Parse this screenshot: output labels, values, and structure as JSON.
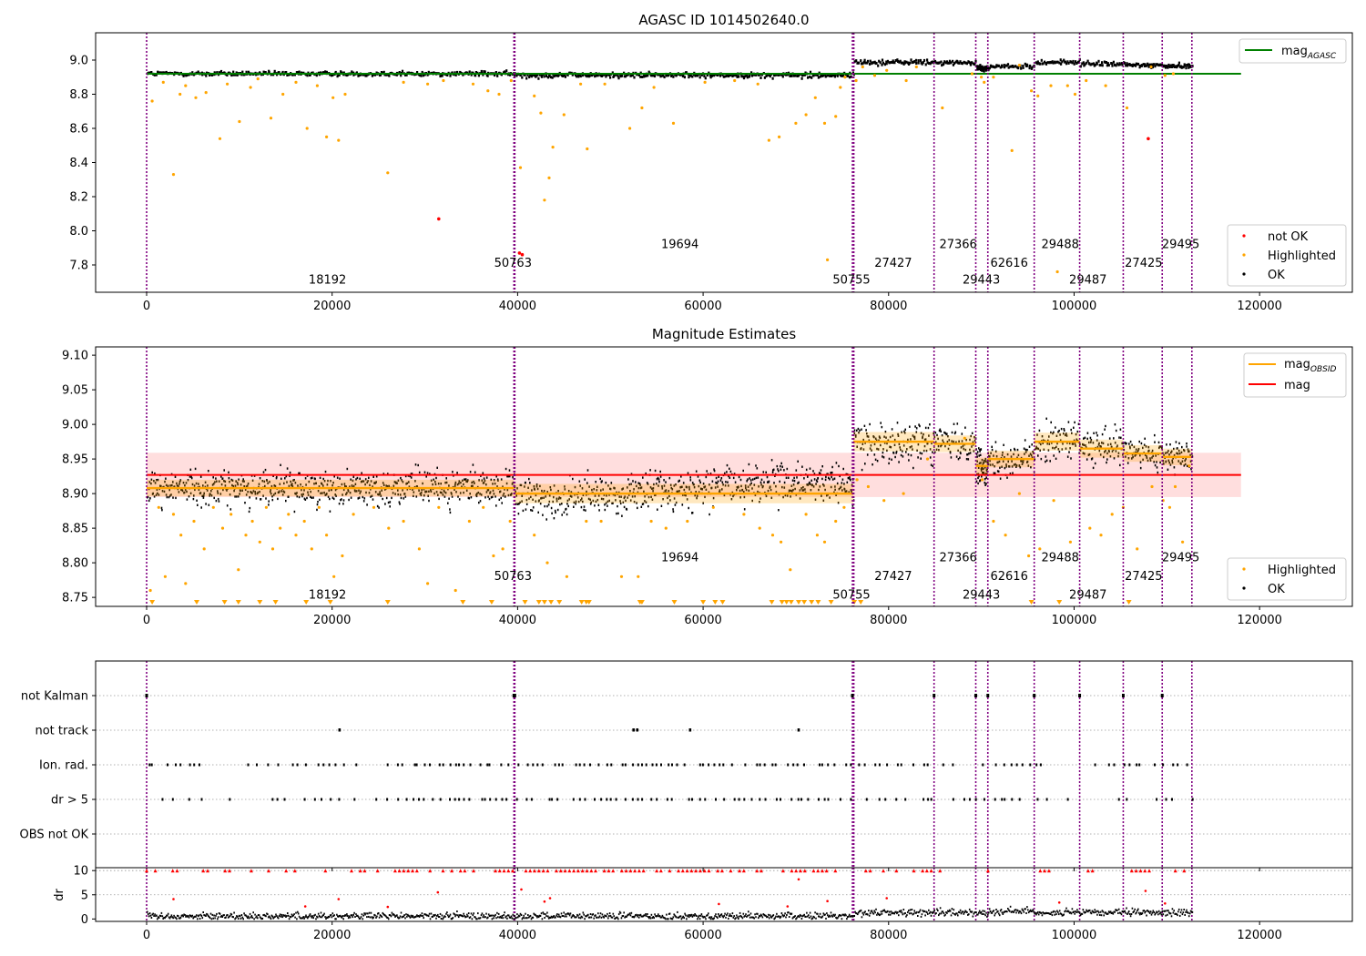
{
  "chart_data": [
    {
      "type": "scatter",
      "title": "AGASC ID 1014502640.0",
      "xlim": [
        -5500,
        130000
      ],
      "ylim": [
        7.64,
        9.16
      ],
      "xticks": [
        0,
        20000,
        40000,
        60000,
        80000,
        100000,
        120000
      ],
      "yticks": [
        7.8,
        8.0,
        8.2,
        8.4,
        8.6,
        8.8,
        9.0
      ],
      "mag_agasc": 8.92,
      "mag_agasc_xrange": [
        0,
        118000
      ],
      "segments": [
        {
          "start": 0,
          "end": 39600,
          "mean": 8.908,
          "spread": 0.012
        },
        {
          "start": 39600,
          "end": 76200,
          "mean": 8.9,
          "spread": 0.014
        },
        {
          "start": 76200,
          "end": 84900,
          "mean": 8.975,
          "spread": 0.014
        },
        {
          "start": 84900,
          "end": 89400,
          "mean": 8.972,
          "spread": 0.012
        },
        {
          "start": 89400,
          "end": 90700,
          "mean": 8.94,
          "spread": 0.012
        },
        {
          "start": 90700,
          "end": 95700,
          "mean": 8.95,
          "spread": 0.012
        },
        {
          "start": 95700,
          "end": 100600,
          "mean": 8.975,
          "spread": 0.013
        },
        {
          "start": 100600,
          "end": 105300,
          "mean": 8.965,
          "spread": 0.013
        },
        {
          "start": 105300,
          "end": 109500,
          "mean": 8.958,
          "spread": 0.012
        },
        {
          "start": 109500,
          "end": 112700,
          "mean": 8.953,
          "spread": 0.012
        }
      ],
      "vlines": [
        0,
        39600,
        39700,
        76100,
        76250,
        84900,
        89400,
        90700,
        95700,
        100600,
        105300,
        109500,
        112700
      ],
      "obsid_labels": [
        {
          "text": "18192",
          "x": 19500,
          "y": 7.69
        },
        {
          "text": "50763",
          "x": 39500,
          "y": 7.79
        },
        {
          "text": "19694",
          "x": 57500,
          "y": 7.9
        },
        {
          "text": "50755",
          "x": 76000,
          "y": 7.69
        },
        {
          "text": "27427",
          "x": 80500,
          "y": 7.79
        },
        {
          "text": "27366",
          "x": 87500,
          "y": 7.9
        },
        {
          "text": "29443",
          "x": 90000,
          "y": 7.69
        },
        {
          "text": "62616",
          "x": 93000,
          "y": 7.79
        },
        {
          "text": "29488",
          "x": 98500,
          "y": 7.9
        },
        {
          "text": "29487",
          "x": 101500,
          "y": 7.69
        },
        {
          "text": "27425",
          "x": 107500,
          "y": 7.79
        },
        {
          "text": "29495",
          "x": 111500,
          "y": 7.9
        }
      ],
      "highlighted_points": [
        [
          600,
          8.76
        ],
        [
          1800,
          8.87
        ],
        [
          2900,
          8.33
        ],
        [
          3600,
          8.8
        ],
        [
          4200,
          8.85
        ],
        [
          5300,
          8.78
        ],
        [
          6400,
          8.81
        ],
        [
          7900,
          8.54
        ],
        [
          8700,
          8.86
        ],
        [
          10000,
          8.64
        ],
        [
          11200,
          8.84
        ],
        [
          12000,
          8.89
        ],
        [
          13400,
          8.66
        ],
        [
          14700,
          8.8
        ],
        [
          16100,
          8.87
        ],
        [
          17300,
          8.6
        ],
        [
          18400,
          8.85
        ],
        [
          19400,
          8.55
        ],
        [
          20100,
          8.78
        ],
        [
          20700,
          8.53
        ],
        [
          21400,
          8.8
        ],
        [
          26000,
          8.34
        ],
        [
          27700,
          8.87
        ],
        [
          30300,
          8.86
        ],
        [
          32000,
          8.88
        ],
        [
          35200,
          8.86
        ],
        [
          36800,
          8.82
        ],
        [
          38000,
          8.8
        ],
        [
          39300,
          8.88
        ],
        [
          40300,
          8.37
        ],
        [
          41800,
          8.79
        ],
        [
          42500,
          8.69
        ],
        [
          42900,
          8.18
        ],
        [
          43400,
          8.31
        ],
        [
          43800,
          8.49
        ],
        [
          45000,
          8.68
        ],
        [
          46800,
          8.86
        ],
        [
          47500,
          8.48
        ],
        [
          49400,
          8.86
        ],
        [
          52100,
          8.6
        ],
        [
          53400,
          8.72
        ],
        [
          54700,
          8.84
        ],
        [
          56800,
          8.63
        ],
        [
          60200,
          8.87
        ],
        [
          63400,
          8.88
        ],
        [
          65900,
          8.86
        ],
        [
          67100,
          8.53
        ],
        [
          68200,
          8.55
        ],
        [
          70000,
          8.63
        ],
        [
          71100,
          8.68
        ],
        [
          72100,
          8.78
        ],
        [
          73100,
          8.63
        ],
        [
          74300,
          8.67
        ],
        [
          74800,
          8.84
        ],
        [
          75300,
          8.9
        ],
        [
          73400,
          7.83
        ],
        [
          76500,
          8.88
        ],
        [
          77200,
          8.96
        ],
        [
          78500,
          8.91
        ],
        [
          79800,
          8.94
        ],
        [
          81900,
          8.88
        ],
        [
          83000,
          8.96
        ],
        [
          85800,
          8.72
        ],
        [
          89000,
          8.92
        ],
        [
          90000,
          8.9
        ],
        [
          90300,
          8.87
        ],
        [
          91300,
          8.9
        ],
        [
          93300,
          8.47
        ],
        [
          94100,
          8.97
        ],
        [
          95400,
          8.82
        ],
        [
          96100,
          8.79
        ],
        [
          97500,
          8.85
        ],
        [
          98200,
          7.76
        ],
        [
          99300,
          8.85
        ],
        [
          100100,
          8.8
        ],
        [
          101300,
          8.88
        ],
        [
          103400,
          8.85
        ],
        [
          105700,
          8.72
        ],
        [
          108300,
          8.96
        ],
        [
          109800,
          8.91
        ],
        [
          110700,
          8.92
        ]
      ],
      "notok_points": [
        [
          31500,
          8.07
        ],
        [
          40200,
          7.87
        ],
        [
          40500,
          7.86
        ],
        [
          108000,
          8.54
        ]
      ],
      "legend_lines": [
        {
          "label": "mag",
          "sub": "AGASC",
          "color": "#008000"
        }
      ],
      "legend_markers": [
        {
          "label": "not OK",
          "color": "#ff0000"
        },
        {
          "label": "Highlighted",
          "color": "#ffa500"
        },
        {
          "label": "OK",
          "color": "#000000"
        }
      ]
    },
    {
      "type": "scatter",
      "title": "Magnitude Estimates",
      "xlim": [
        -5500,
        130000
      ],
      "ylim": [
        8.737,
        9.112
      ],
      "xticks": [
        0,
        20000,
        40000,
        60000,
        80000,
        100000,
        120000
      ],
      "yticks": [
        8.75,
        8.8,
        8.85,
        8.9,
        8.95,
        9.0,
        9.05,
        9.1
      ],
      "mag": 8.927,
      "mag_band": [
        8.895,
        8.959
      ],
      "mag_xrange": [
        0,
        118000
      ],
      "segments_ref": 0,
      "vlines_ref": 0,
      "obsid_labels": [
        {
          "text": "18192",
          "x": 19500,
          "y": 8.748
        },
        {
          "text": "50763",
          "x": 39500,
          "y": 8.775
        },
        {
          "text": "19694",
          "x": 57500,
          "y": 8.802
        },
        {
          "text": "50755",
          "x": 76000,
          "y": 8.748
        },
        {
          "text": "27427",
          "x": 80500,
          "y": 8.775
        },
        {
          "text": "27366",
          "x": 87500,
          "y": 8.802
        },
        {
          "text": "29443",
          "x": 90000,
          "y": 8.748
        },
        {
          "text": "62616",
          "x": 93000,
          "y": 8.775
        },
        {
          "text": "29488",
          "x": 98500,
          "y": 8.802
        },
        {
          "text": "29487",
          "x": 101500,
          "y": 8.748
        },
        {
          "text": "27425",
          "x": 107500,
          "y": 8.775
        },
        {
          "text": "29495",
          "x": 111500,
          "y": 8.802
        }
      ],
      "highlighted_points": [
        [
          400,
          8.76
        ],
        [
          1300,
          8.88
        ],
        [
          2000,
          8.78
        ],
        [
          2900,
          8.87
        ],
        [
          3700,
          8.84
        ],
        [
          4200,
          8.77
        ],
        [
          5100,
          8.86
        ],
        [
          6200,
          8.82
        ],
        [
          7200,
          8.88
        ],
        [
          8200,
          8.85
        ],
        [
          9100,
          8.87
        ],
        [
          9900,
          8.79
        ],
        [
          10700,
          8.84
        ],
        [
          11400,
          8.86
        ],
        [
          12200,
          8.83
        ],
        [
          12900,
          8.88
        ],
        [
          13600,
          8.82
        ],
        [
          14400,
          8.85
        ],
        [
          15300,
          8.87
        ],
        [
          16100,
          8.84
        ],
        [
          17000,
          8.86
        ],
        [
          17800,
          8.82
        ],
        [
          18600,
          8.88
        ],
        [
          19400,
          8.84
        ],
        [
          20200,
          8.78
        ],
        [
          21100,
          8.81
        ],
        [
          22300,
          8.87
        ],
        [
          24500,
          8.88
        ],
        [
          26100,
          8.85
        ],
        [
          27700,
          8.86
        ],
        [
          29400,
          8.82
        ],
        [
          30300,
          8.77
        ],
        [
          31500,
          8.88
        ],
        [
          33300,
          8.76
        ],
        [
          34800,
          8.86
        ],
        [
          36300,
          8.88
        ],
        [
          37400,
          8.81
        ],
        [
          38400,
          8.82
        ],
        [
          39200,
          8.86
        ],
        [
          41800,
          8.84
        ],
        [
          43200,
          8.8
        ],
        [
          45300,
          8.78
        ],
        [
          47400,
          8.86
        ],
        [
          49000,
          8.86
        ],
        [
          51200,
          8.78
        ],
        [
          53000,
          8.78
        ],
        [
          54400,
          8.86
        ],
        [
          56000,
          8.85
        ],
        [
          58300,
          8.86
        ],
        [
          61100,
          8.88
        ],
        [
          64400,
          8.87
        ],
        [
          66100,
          8.85
        ],
        [
          67500,
          8.84
        ],
        [
          68400,
          8.83
        ],
        [
          69400,
          8.79
        ],
        [
          71100,
          8.87
        ],
        [
          72300,
          8.84
        ],
        [
          73100,
          8.83
        ],
        [
          74300,
          8.86
        ],
        [
          75200,
          8.88
        ],
        [
          76600,
          8.92
        ],
        [
          77800,
          8.91
        ],
        [
          79500,
          8.89
        ],
        [
          81600,
          8.9
        ],
        [
          84200,
          8.95
        ],
        [
          88200,
          8.98
        ],
        [
          90100,
          8.92
        ],
        [
          91300,
          8.86
        ],
        [
          92600,
          8.84
        ],
        [
          94100,
          8.9
        ],
        [
          95100,
          8.81
        ],
        [
          96300,
          8.82
        ],
        [
          97800,
          8.89
        ],
        [
          99600,
          8.83
        ],
        [
          101700,
          8.85
        ],
        [
          102900,
          8.84
        ],
        [
          104100,
          8.87
        ],
        [
          105300,
          8.88
        ],
        [
          106800,
          8.82
        ],
        [
          108400,
          8.91
        ],
        [
          109600,
          8.89
        ],
        [
          110300,
          8.88
        ],
        [
          110900,
          8.91
        ],
        [
          111700,
          8.83
        ],
        [
          112400,
          8.94
        ]
      ],
      "below_range_x": [
        600,
        5400,
        8400,
        9900,
        12200,
        13900,
        17200,
        19800,
        26000,
        34100,
        37200,
        40800,
        42300,
        42900,
        43600,
        44500,
        46900,
        47400,
        47700,
        53200,
        53400,
        56900,
        60000,
        61300,
        62100,
        67400,
        68500,
        69000,
        69500,
        70300,
        70900,
        71700,
        72400,
        73800,
        76300,
        77000,
        95400,
        98400,
        105900
      ],
      "legend_lines": [
        {
          "label": "mag",
          "sub": "OBSID",
          "color": "#ffa500"
        },
        {
          "label": "mag",
          "sub": "",
          "color": "#ff0000"
        }
      ],
      "legend_markers": [
        {
          "label": "Highlighted",
          "color": "#ffa500"
        },
        {
          "label": "OK",
          "color": "#000000"
        }
      ]
    },
    {
      "type": "scatter",
      "title": "",
      "xlim": [
        -5500,
        130000
      ],
      "flag_rows": [
        "not Kalman",
        "not track",
        "Ion. rad.",
        "dr > 5",
        "OBS not OK"
      ],
      "not_kalman_x": [
        0,
        39600,
        39700,
        76100,
        84900,
        89400,
        90700,
        95700,
        100600,
        105300,
        109500
      ],
      "not_track_x": [
        20800,
        52500,
        52900,
        58600,
        70300
      ],
      "ion_rad_density": 0.55,
      "dr_gt5_density": 0.45,
      "dr_ylim": [
        -0.5,
        10.6
      ],
      "dr_yticks": [
        0,
        5,
        10
      ],
      "dr_ylabel": "dr",
      "dr_cap": 10,
      "dr_outliers": [
        [
          2900,
          4.1
        ],
        [
          17100,
          2.6
        ],
        [
          20700,
          4.1
        ],
        [
          26000,
          2.5
        ],
        [
          31400,
          5.5
        ],
        [
          40400,
          6.1
        ],
        [
          42900,
          3.6
        ],
        [
          43500,
          4.3
        ],
        [
          61700,
          3.1
        ],
        [
          69100,
          2.6
        ],
        [
          70300,
          8.2
        ],
        [
          73400,
          3.7
        ],
        [
          79800,
          4.3
        ],
        [
          98400,
          3.4
        ],
        [
          107700,
          5.8
        ],
        [
          109800,
          3.2
        ]
      ]
    }
  ]
}
